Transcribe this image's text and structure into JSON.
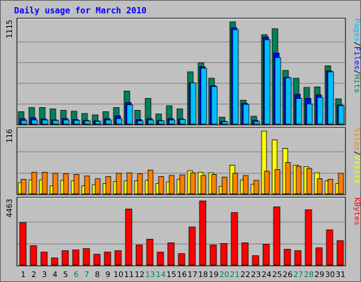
{
  "title": "Daily usage for March 2010",
  "colors": {
    "hits": "#00805c",
    "files": "#0000ff",
    "pages": "#00c0ff",
    "visits": "#ffff00",
    "sites": "#ff8000",
    "kbytes": "#ff0000",
    "bg": "#c0c0c0",
    "title": "#0000ff",
    "weekend_day": "#00805c",
    "weekday": "#000000"
  },
  "chart_data": [
    {
      "type": "bar",
      "panel": "hits-files-pages",
      "ymax_label": "1115",
      "ylim": [
        0,
        1115
      ],
      "legend": [
        "Pages",
        "Files",
        "Hits"
      ],
      "x": [
        "1",
        "2",
        "3",
        "4",
        "5",
        "6",
        "7",
        "8",
        "9",
        "10",
        "11",
        "12",
        "13",
        "14",
        "15",
        "16",
        "17",
        "18",
        "19",
        "20",
        "21",
        "22",
        "23",
        "24",
        "25",
        "26",
        "27",
        "28",
        "29",
        "30",
        "31"
      ],
      "weekend": [
        6,
        7,
        13,
        14,
        20,
        21,
        27,
        28
      ],
      "series": [
        {
          "name": "Hits",
          "values": [
            135,
            180,
            180,
            165,
            150,
            140,
            115,
            100,
            135,
            180,
            360,
            150,
            280,
            110,
            200,
            165,
            570,
            670,
            500,
            75,
            1115,
            260,
            85,
            975,
            1040,
            585,
            500,
            400,
            405,
            635,
            275
          ]
        },
        {
          "name": "Files",
          "values": [
            60,
            70,
            55,
            45,
            60,
            50,
            40,
            35,
            60,
            90,
            235,
            50,
            60,
            40,
            60,
            55,
            450,
            625,
            420,
            30,
            1050,
            225,
            40,
            950,
            775,
            510,
            325,
            280,
            320,
            580,
            210
          ]
        },
        {
          "name": "Pages",
          "values": [
            40,
            45,
            45,
            40,
            45,
            40,
            35,
            30,
            45,
            60,
            210,
            35,
            45,
            35,
            45,
            50,
            450,
            610,
            410,
            25,
            1030,
            215,
            30,
            920,
            725,
            505,
            280,
            220,
            290,
            570,
            200
          ]
        }
      ]
    },
    {
      "type": "bar",
      "panel": "visits-sites",
      "ymax_label": "116",
      "ylim": [
        0,
        116
      ],
      "legend": [
        "Sites",
        "Visits"
      ],
      "series": [
        {
          "name": "Visits",
          "values": [
            21,
            26,
            26,
            15,
            25,
            24,
            15,
            17,
            19,
            23,
            24,
            24,
            25,
            19,
            22,
            27,
            43,
            40,
            39,
            14,
            53,
            26,
            18,
            116,
            100,
            84,
            53,
            50,
            39,
            24,
            19
          ]
        },
        {
          "name": "Sites",
          "values": [
            27,
            40,
            40,
            38,
            37,
            36,
            33,
            28,
            32,
            38,
            39,
            37,
            44,
            32,
            34,
            35,
            39,
            34,
            36,
            31,
            38,
            34,
            25,
            42,
            45,
            58,
            51,
            47,
            28,
            27,
            38
          ]
        }
      ]
    },
    {
      "type": "bar",
      "panel": "kbytes",
      "ymax_label": "4463",
      "ylim": [
        0,
        4463
      ],
      "legend": [
        "KBytes"
      ],
      "series": [
        {
          "name": "KBytes",
          "values": [
            2950,
            1350,
            900,
            500,
            1000,
            1050,
            1150,
            750,
            900,
            1000,
            3900,
            1400,
            1800,
            900,
            1550,
            800,
            2650,
            4463,
            1400,
            1500,
            3650,
            1550,
            650,
            1450,
            4050,
            1100,
            1000,
            3850,
            1200,
            2450,
            1700
          ]
        }
      ]
    }
  ]
}
